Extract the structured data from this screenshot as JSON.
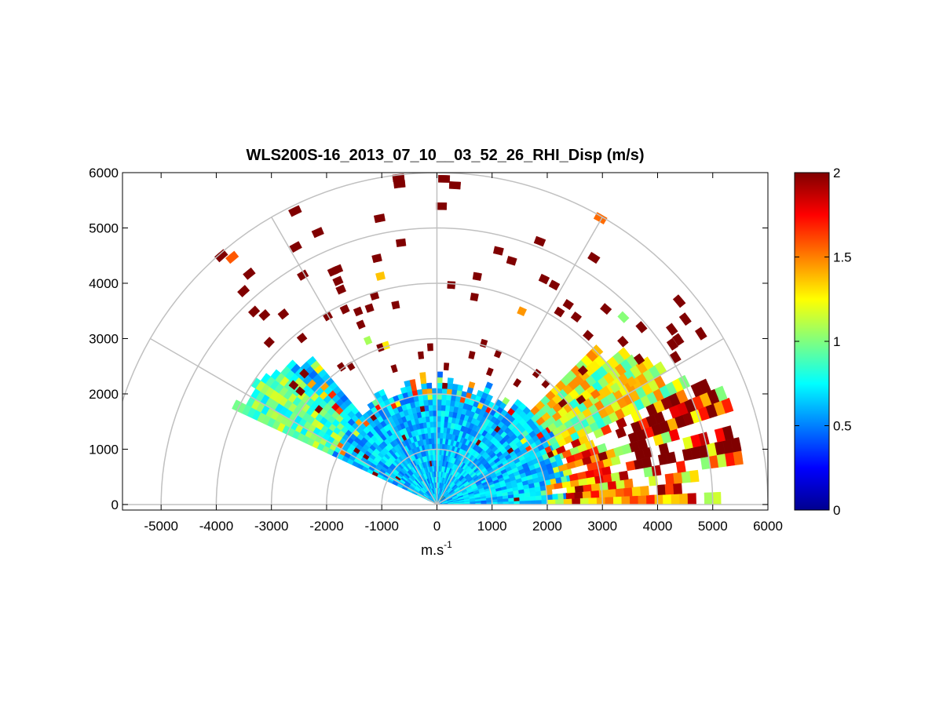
{
  "chart_data": {
    "type": "heatmap",
    "subtype": "polar-rhi",
    "title": "WLS200S-16_2013_07_10__03_52_26_RHI_Disp (m/s)",
    "xlabel_base": "m.s",
    "xlabel_sup": "-1",
    "ylabel": "",
    "xlim": [
      -5700,
      6000
    ],
    "ylim": [
      -100,
      6000
    ],
    "x_ticks": [
      "-5000",
      "-4000",
      "-3000",
      "-2000",
      "-1000",
      "0",
      "1000",
      "2000",
      "3000",
      "4000",
      "5000",
      "6000"
    ],
    "y_ticks": [
      "0",
      "1000",
      "2000",
      "3000",
      "4000",
      "5000",
      "6000"
    ],
    "range_rings": [
      1000,
      2000,
      3000,
      4000,
      5000,
      6000
    ],
    "radial_lines_deg": [
      0,
      30,
      60,
      90,
      120,
      150,
      180
    ],
    "grid": true,
    "colorbar": {
      "colormap": "jet",
      "range": [
        0,
        2
      ],
      "ticks": [
        "0",
        "0.5",
        "1",
        "1.5",
        "2"
      ]
    },
    "data_summary": {
      "elevation_coverage_deg": [
        0,
        155
      ],
      "near_field_range_m": [
        0,
        2300
      ],
      "near_field_value_ms": [
        0.5,
        0.8
      ],
      "low_elevation_far_field_value_ms": [
        1.0,
        2.0
      ],
      "sparse_high_value_cells_ms": 2.0,
      "sectors": [
        {
          "elevation_deg_from": 0,
          "elevation_deg_to": 10,
          "range_m": [
            0,
            6000
          ],
          "value": 1.4
        },
        {
          "elevation_deg_from": 10,
          "elevation_deg_to": 25,
          "range_m": [
            2500,
            6000
          ],
          "value": 1.9
        },
        {
          "elevation_deg_from": 25,
          "elevation_deg_to": 45,
          "range_m": [
            2300,
            4800
          ],
          "value": 1.1
        },
        {
          "elevation_deg_from": 45,
          "elevation_deg_to": 90,
          "range_m": [
            2300,
            6000
          ],
          "value": 2.0
        },
        {
          "elevation_deg_from": 90,
          "elevation_deg_to": 135,
          "range_m": [
            2300,
            5500
          ],
          "value": 2.0
        },
        {
          "elevation_deg_from": 135,
          "elevation_deg_to": 155,
          "range_m": [
            0,
            3800
          ],
          "value": 0.9
        }
      ]
    }
  }
}
